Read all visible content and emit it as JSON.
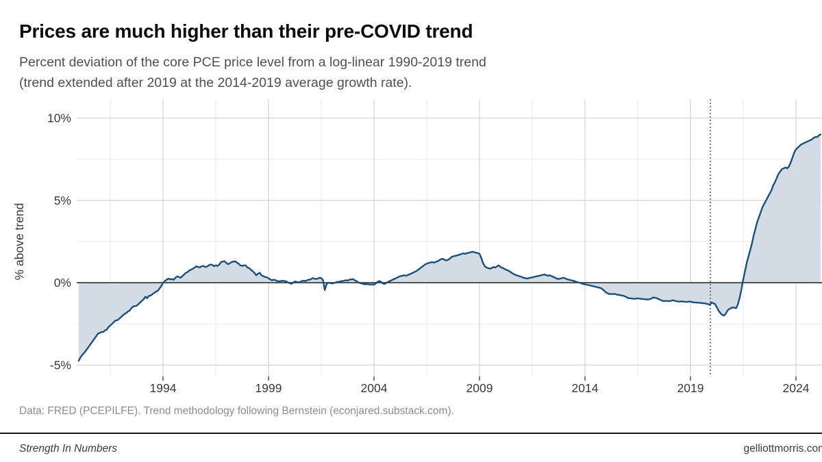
{
  "header": {
    "title": "Prices are much higher than their pre-COVID trend",
    "subtitle_line1": "Percent deviation of the core PCE price level from a log-linear 1990-2019 trend",
    "subtitle_line2": "(trend extended after 2019 at the 2014-2019 average growth rate)."
  },
  "chart_data": {
    "type": "area",
    "title": "Prices are much higher than their pre-COVID trend",
    "xlabel": "",
    "ylabel": "% above trend",
    "x_start": 1990.0,
    "x_step": 0.0833333,
    "x_ticks": [
      1994,
      1999,
      2004,
      2009,
      2014,
      2019,
      2024
    ],
    "x_minor_ticks": [
      1991.5,
      1996.5,
      2001.5,
      2006.5,
      2011.5,
      2016.5,
      2021.5
    ],
    "y_ticks": [
      {
        "value": 10,
        "label": "10%"
      },
      {
        "value": 5,
        "label": "5%"
      },
      {
        "value": 0,
        "label": "0%"
      },
      {
        "value": -5,
        "label": "-5%"
      }
    ],
    "y_minor_ticks": [
      7.5,
      2.5,
      -2.5
    ],
    "x_range_years": [
      1990.0,
      2025.2
    ],
    "ylim": [
      -5.6,
      11.0
    ],
    "grid": true,
    "legend": "none",
    "zero_line": true,
    "annotations": [
      {
        "type": "vline-dotted",
        "x": 2019.94,
        "meaning": "COVID onset"
      }
    ],
    "colors": {
      "line": "#1d4f76",
      "fill": "#d3dbe5",
      "zero_line": "#3d3d3d",
      "grid_major": "#cfcfcf",
      "grid_minor": "#e7e7e7",
      "dotted_line": "#1a1a1a"
    },
    "series": [
      {
        "name": "core PCE deviation from trend (%)",
        "values": [
          -4.75,
          -4.55,
          -4.4,
          -4.28,
          -4.15,
          -4.0,
          -3.85,
          -3.7,
          -3.55,
          -3.4,
          -3.25,
          -3.1,
          -3.05,
          -3.0,
          -3.0,
          -2.9,
          -2.85,
          -2.7,
          -2.6,
          -2.5,
          -2.4,
          -2.3,
          -2.28,
          -2.2,
          -2.1,
          -2.0,
          -1.9,
          -1.85,
          -1.75,
          -1.7,
          -1.55,
          -1.45,
          -1.42,
          -1.4,
          -1.3,
          -1.2,
          -1.1,
          -1.0,
          -0.85,
          -0.95,
          -0.8,
          -0.78,
          -0.7,
          -0.62,
          -0.55,
          -0.5,
          -0.35,
          -0.2,
          -0.02,
          0.1,
          0.18,
          0.25,
          0.2,
          0.22,
          0.18,
          0.3,
          0.38,
          0.35,
          0.3,
          0.4,
          0.5,
          0.6,
          0.65,
          0.75,
          0.8,
          0.85,
          0.92,
          1.0,
          0.95,
          0.93,
          1.0,
          1.02,
          0.95,
          0.98,
          1.05,
          1.1,
          1.08,
          1.0,
          1.05,
          1.02,
          1.1,
          1.25,
          1.28,
          1.3,
          1.2,
          1.12,
          1.18,
          1.25,
          1.28,
          1.3,
          1.22,
          1.15,
          1.05,
          1.02,
          1.05,
          1.05,
          0.92,
          0.88,
          0.78,
          0.7,
          0.6,
          0.45,
          0.55,
          0.6,
          0.45,
          0.4,
          0.35,
          0.32,
          0.27,
          0.2,
          0.15,
          0.18,
          0.15,
          0.1,
          0.08,
          0.1,
          0.12,
          0.1,
          0.08,
          0.02,
          -0.02,
          -0.07,
          0.0,
          0.07,
          0.05,
          0.02,
          0.05,
          0.1,
          0.12,
          0.1,
          0.15,
          0.18,
          0.2,
          0.28,
          0.25,
          0.22,
          0.25,
          0.3,
          0.28,
          0.15,
          -0.45,
          -0.1,
          0.0,
          -0.02,
          -0.05,
          -0.03,
          0.0,
          0.05,
          0.05,
          0.08,
          0.1,
          0.12,
          0.15,
          0.13,
          0.18,
          0.2,
          0.22,
          0.15,
          0.1,
          0.02,
          -0.02,
          -0.05,
          -0.08,
          -0.1,
          -0.08,
          -0.1,
          -0.12,
          -0.1,
          -0.12,
          -0.05,
          0.05,
          0.1,
          0.05,
          -0.05,
          -0.08,
          -0.02,
          0.05,
          0.1,
          0.15,
          0.2,
          0.25,
          0.3,
          0.35,
          0.4,
          0.42,
          0.45,
          0.42,
          0.45,
          0.5,
          0.55,
          0.6,
          0.65,
          0.7,
          0.78,
          0.85,
          0.95,
          1.02,
          1.1,
          1.15,
          1.2,
          1.22,
          1.25,
          1.22,
          1.25,
          1.3,
          1.35,
          1.42,
          1.45,
          1.4,
          1.35,
          1.38,
          1.45,
          1.55,
          1.6,
          1.62,
          1.65,
          1.68,
          1.72,
          1.75,
          1.78,
          1.75,
          1.8,
          1.82,
          1.85,
          1.88,
          1.85,
          1.82,
          1.8,
          1.75,
          1.5,
          1.2,
          1.0,
          0.92,
          0.88,
          0.85,
          0.9,
          0.95,
          0.92,
          1.0,
          1.05,
          0.95,
          0.9,
          0.85,
          0.8,
          0.75,
          0.7,
          0.62,
          0.55,
          0.5,
          0.45,
          0.42,
          0.38,
          0.35,
          0.3,
          0.28,
          0.25,
          0.28,
          0.3,
          0.32,
          0.35,
          0.38,
          0.4,
          0.42,
          0.45,
          0.48,
          0.5,
          0.45,
          0.42,
          0.45,
          0.4,
          0.35,
          0.3,
          0.25,
          0.22,
          0.25,
          0.28,
          0.3,
          0.25,
          0.2,
          0.18,
          0.15,
          0.12,
          0.1,
          0.05,
          0.02,
          0.0,
          -0.05,
          -0.08,
          -0.1,
          -0.12,
          -0.15,
          -0.17,
          -0.2,
          -0.22,
          -0.25,
          -0.28,
          -0.3,
          -0.33,
          -0.4,
          -0.5,
          -0.6,
          -0.65,
          -0.7,
          -0.68,
          -0.7,
          -0.68,
          -0.72,
          -0.75,
          -0.75,
          -0.78,
          -0.8,
          -0.85,
          -0.9,
          -0.95,
          -0.95,
          -0.97,
          -0.98,
          -0.97,
          -0.95,
          -0.97,
          -0.98,
          -1.0,
          -1.0,
          -1.02,
          -1.02,
          -1.0,
          -0.95,
          -0.9,
          -0.92,
          -0.95,
          -1.0,
          -1.05,
          -1.1,
          -1.12,
          -1.1,
          -1.12,
          -1.12,
          -1.1,
          -1.07,
          -1.1,
          -1.12,
          -1.15,
          -1.15,
          -1.13,
          -1.15,
          -1.17,
          -1.17,
          -1.15,
          -1.15,
          -1.18,
          -1.2,
          -1.2,
          -1.22,
          -1.22,
          -1.23,
          -1.25,
          -1.25,
          -1.28,
          -1.3,
          -1.35,
          -1.2,
          -1.25,
          -1.3,
          -1.5,
          -1.7,
          -1.85,
          -1.95,
          -2.0,
          -1.9,
          -1.7,
          -1.6,
          -1.55,
          -1.5,
          -1.52,
          -1.55,
          -1.3,
          -0.9,
          -0.4,
          0.2,
          0.7,
          1.2,
          1.6,
          2.0,
          2.4,
          2.9,
          3.3,
          3.7,
          4.0,
          4.3,
          4.6,
          4.8,
          5.0,
          5.2,
          5.4,
          5.6,
          5.9,
          6.1,
          6.35,
          6.6,
          6.75,
          6.9,
          6.95,
          7.0,
          6.95,
          7.05,
          7.3,
          7.6,
          7.9,
          8.1,
          8.2,
          8.3,
          8.4,
          8.45,
          8.5,
          8.55,
          8.6,
          8.65,
          8.7,
          8.8,
          8.85,
          8.85,
          8.95,
          9.0
        ]
      }
    ]
  },
  "caption": "Data: FRED (PCEPILFE). Trend methodology following Bernstein (econjared.substack.com).",
  "footer": {
    "left": "Strength In Numbers",
    "right": "gelliottmorris.com"
  }
}
